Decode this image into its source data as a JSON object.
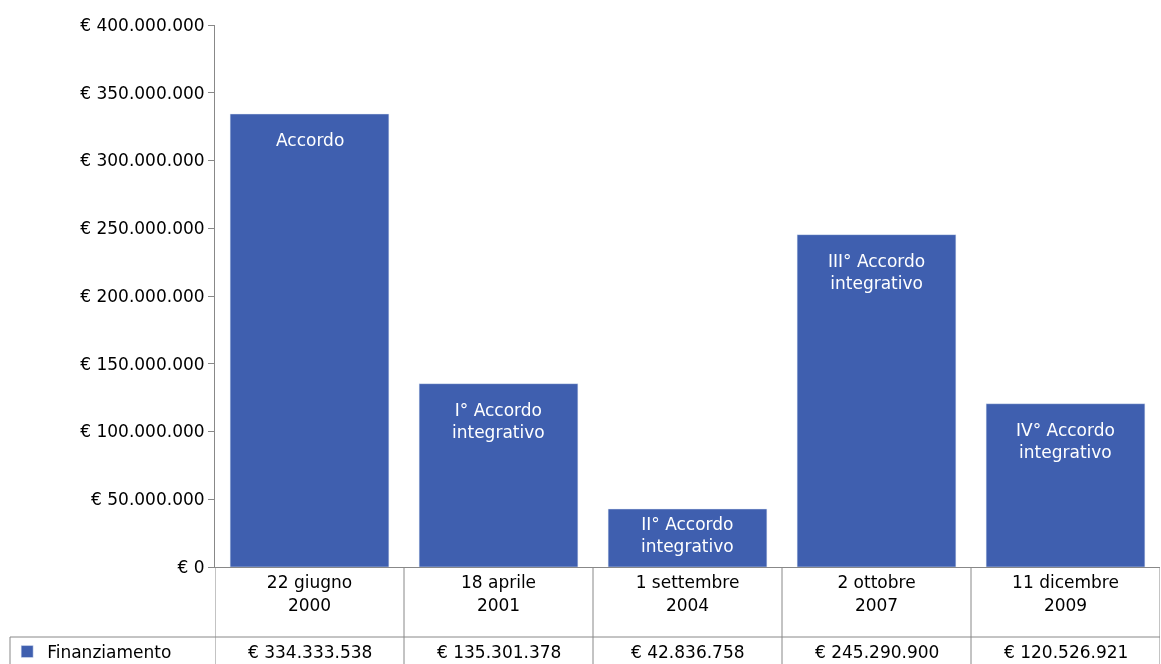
{
  "chart_data": {
    "type": "bar",
    "categories": [
      "22 giugno 2000",
      "18 aprile 2001",
      "1 settembre 2004",
      "2 ottobre 2007",
      "11 dicembre 2009"
    ],
    "series": [
      {
        "name": "Finanziamento",
        "color": "#3f5faf",
        "values": [
          334333538,
          135301378,
          42836758,
          245290900,
          120526921
        ],
        "value_labels": [
          "€ 334.333.538",
          "€ 135.301.378",
          "€ 42.836.758",
          "€ 245.290.900",
          "€ 120.526.921"
        ]
      }
    ],
    "ylim": [
      0,
      400000000
    ],
    "yticks": [
      {
        "value": 0,
        "label": "€ 0"
      },
      {
        "value": 50000000,
        "label": "€ 50.000.000"
      },
      {
        "value": 100000000,
        "label": "€ 100.000.000"
      },
      {
        "value": 150000000,
        "label": "€ 150.000.000"
      },
      {
        "value": 200000000,
        "label": "€ 200.000.000"
      },
      {
        "value": 250000000,
        "label": "€ 250.000.000"
      },
      {
        "value": 300000000,
        "label": "€ 300.000.000"
      },
      {
        "value": 350000000,
        "label": "€ 350.000.000"
      },
      {
        "value": 400000000,
        "label": "€ 400.000.000"
      }
    ],
    "annotations": [
      "Accordo",
      "I° Accordo integrativo",
      "II° Accordo integrativo",
      "III° Accordo integrativo",
      "IV° Accordo integrativo"
    ],
    "legend": "bottom left"
  }
}
